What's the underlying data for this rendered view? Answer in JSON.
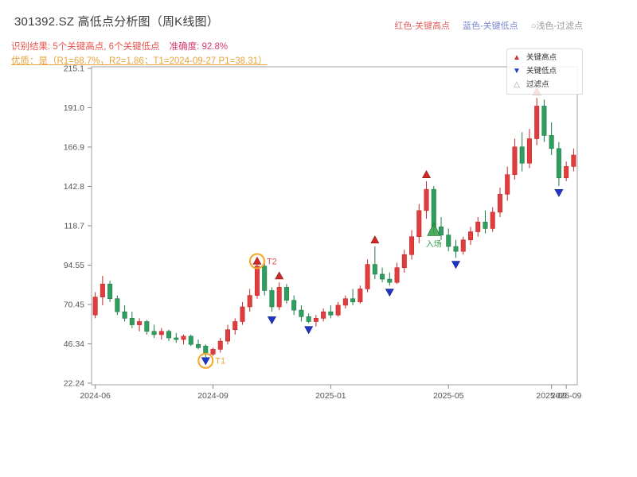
{
  "header": {
    "title": "301392.SZ 高低点分析图（周K线图）",
    "legend_top": [
      {
        "label": "红色-关键高点",
        "color": "#e06060"
      },
      {
        "label": "蓝色-关键低点",
        "color": "#7b87cf"
      },
      {
        "label": "○浅色-过滤点",
        "color": "#9a9aa2"
      }
    ],
    "result_text": "识别结果: 5个关键高点, 6个关键低点",
    "accuracy_text": "准确度: 92.8%",
    "quality_line": "优质：是（R1=68.7%，R2=1.86；T1=2024-09-27 P1=38.31）"
  },
  "legend": {
    "items": [
      {
        "label": "关键高点",
        "marker": "up",
        "color": "#d03030"
      },
      {
        "label": "关键低点",
        "marker": "down",
        "color": "#2438c8"
      },
      {
        "label": "过滤点",
        "marker": "outline",
        "color": "#999999"
      }
    ]
  },
  "colors": {
    "up": "#e03e3e",
    "up_edge": "#c22727",
    "down": "#2f9e5f",
    "down_edge": "#1f7a45",
    "key_high": "#cf2a2a",
    "key_low": "#2136c9",
    "entry": "#2f9e44",
    "highlight_ring": "#f5a623",
    "axis": "#9aa0a6",
    "tick_text": "#555555",
    "result": "#e8554e",
    "accuracy": "#d63a6a",
    "quality": "#e8a33c",
    "title": "#3c3c3c"
  },
  "chart_data": {
    "type": "candlestick",
    "symbol": "301392.SZ",
    "period": "weekly",
    "title": "301392.SZ 高低点分析图（周K线图）",
    "y_range": [
      22.24,
      215.1
    ],
    "y_ticks": [
      "22.24",
      "46.34",
      "70.45",
      "94.55",
      "118.7",
      "142.8",
      "166.9",
      "191.0",
      "215.1"
    ],
    "x_tick_labels": [
      {
        "index": 0,
        "label": "2024-06"
      },
      {
        "index": 16,
        "label": "2024-09"
      },
      {
        "index": 32,
        "label": "2025-01"
      },
      {
        "index": 48,
        "label": "2025-05"
      },
      {
        "index": 62,
        "label": "2025-09"
      },
      {
        "index": 64,
        "label": "2025-09"
      }
    ],
    "candles_format": "[open, high, low, close]",
    "candles": [
      [
        64,
        78,
        62,
        75
      ],
      [
        75,
        88,
        70,
        83
      ],
      [
        83,
        85,
        72,
        74
      ],
      [
        74,
        76,
        64,
        66
      ],
      [
        66,
        70,
        60,
        62
      ],
      [
        62,
        66,
        56,
        58
      ],
      [
        58,
        62,
        54,
        60
      ],
      [
        60,
        61,
        52,
        54
      ],
      [
        54,
        58,
        50,
        52
      ],
      [
        52,
        56,
        49,
        54
      ],
      [
        54,
        55,
        48,
        50
      ],
      [
        50,
        53,
        47,
        49
      ],
      [
        49,
        52,
        46,
        51
      ],
      [
        51,
        52,
        45,
        46
      ],
      [
        46,
        49,
        43,
        44
      ],
      [
        45,
        46,
        38.31,
        40
      ],
      [
        40,
        44,
        39,
        43
      ],
      [
        43,
        50,
        41,
        48
      ],
      [
        48,
        58,
        46,
        55
      ],
      [
        55,
        62,
        52,
        60
      ],
      [
        60,
        72,
        58,
        69
      ],
      [
        69,
        80,
        66,
        76
      ],
      [
        76,
        96.5,
        74,
        94
      ],
      [
        94,
        96,
        76,
        79
      ],
      [
        79,
        81,
        66,
        69
      ],
      [
        69,
        84,
        67,
        81
      ],
      [
        81,
        83,
        71,
        73
      ],
      [
        73,
        76,
        64,
        67
      ],
      [
        67,
        70,
        60,
        63
      ],
      [
        63,
        65,
        59,
        60
      ],
      [
        60,
        64,
        57,
        62
      ],
      [
        62,
        68,
        60,
        66
      ],
      [
        66,
        70,
        62,
        64
      ],
      [
        64,
        72,
        63,
        70
      ],
      [
        70,
        76,
        68,
        74
      ],
      [
        74,
        80,
        70,
        72
      ],
      [
        72,
        82,
        71,
        80
      ],
      [
        80,
        98,
        78,
        95
      ],
      [
        95,
        106,
        86,
        89
      ],
      [
        89,
        93,
        84,
        86
      ],
      [
        86,
        90,
        82,
        84
      ],
      [
        84,
        96,
        83,
        93
      ],
      [
        93,
        104,
        90,
        101
      ],
      [
        101,
        116,
        98,
        112
      ],
      [
        112,
        132,
        108,
        128
      ],
      [
        128,
        146,
        123,
        141
      ],
      [
        141,
        143,
        114,
        118
      ],
      [
        118,
        124,
        110,
        113
      ],
      [
        113,
        117,
        103,
        106
      ],
      [
        106,
        110,
        99,
        103
      ],
      [
        103,
        112,
        101,
        110
      ],
      [
        110,
        118,
        107,
        115
      ],
      [
        115,
        124,
        112,
        121
      ],
      [
        121,
        128,
        114,
        117
      ],
      [
        117,
        130,
        115,
        127
      ],
      [
        127,
        142,
        124,
        138
      ],
      [
        138,
        155,
        134,
        150
      ],
      [
        150,
        172,
        147,
        167
      ],
      [
        167,
        176,
        152,
        157
      ],
      [
        157,
        178,
        154,
        172
      ],
      [
        172,
        197,
        168,
        192
      ],
      [
        192,
        196,
        170,
        174
      ],
      [
        174,
        182,
        162,
        166
      ],
      [
        166,
        170,
        143,
        148
      ],
      [
        148,
        158,
        146,
        155
      ],
      [
        155,
        166,
        152,
        162
      ]
    ],
    "key_highs": [
      {
        "index": 22,
        "price": 97,
        "label": "T2",
        "circled": true,
        "label_color": "#e05252"
      },
      {
        "index": 25,
        "price": 88
      },
      {
        "index": 38,
        "price": 110
      },
      {
        "index": 45,
        "price": 150
      },
      {
        "index": 60,
        "price": 201
      }
    ],
    "key_lows": [
      {
        "index": 15,
        "price": 36,
        "label": "T1",
        "circled": true,
        "label_color": "#f0a030"
      },
      {
        "index": 24,
        "price": 61
      },
      {
        "index": 29,
        "price": 55
      },
      {
        "index": 40,
        "price": 78
      },
      {
        "index": 49,
        "price": 95
      },
      {
        "index": 63,
        "price": 139
      }
    ],
    "entry": {
      "index": 46,
      "price": 116,
      "label": "入场"
    },
    "annotations": {
      "t1": {
        "date": "2024-09-27",
        "price": 38.31
      },
      "key_high_count": 5,
      "key_low_count": 6,
      "accuracy_pct": 92.8,
      "r1_pct": 68.7,
      "r2": 1.86
    }
  }
}
